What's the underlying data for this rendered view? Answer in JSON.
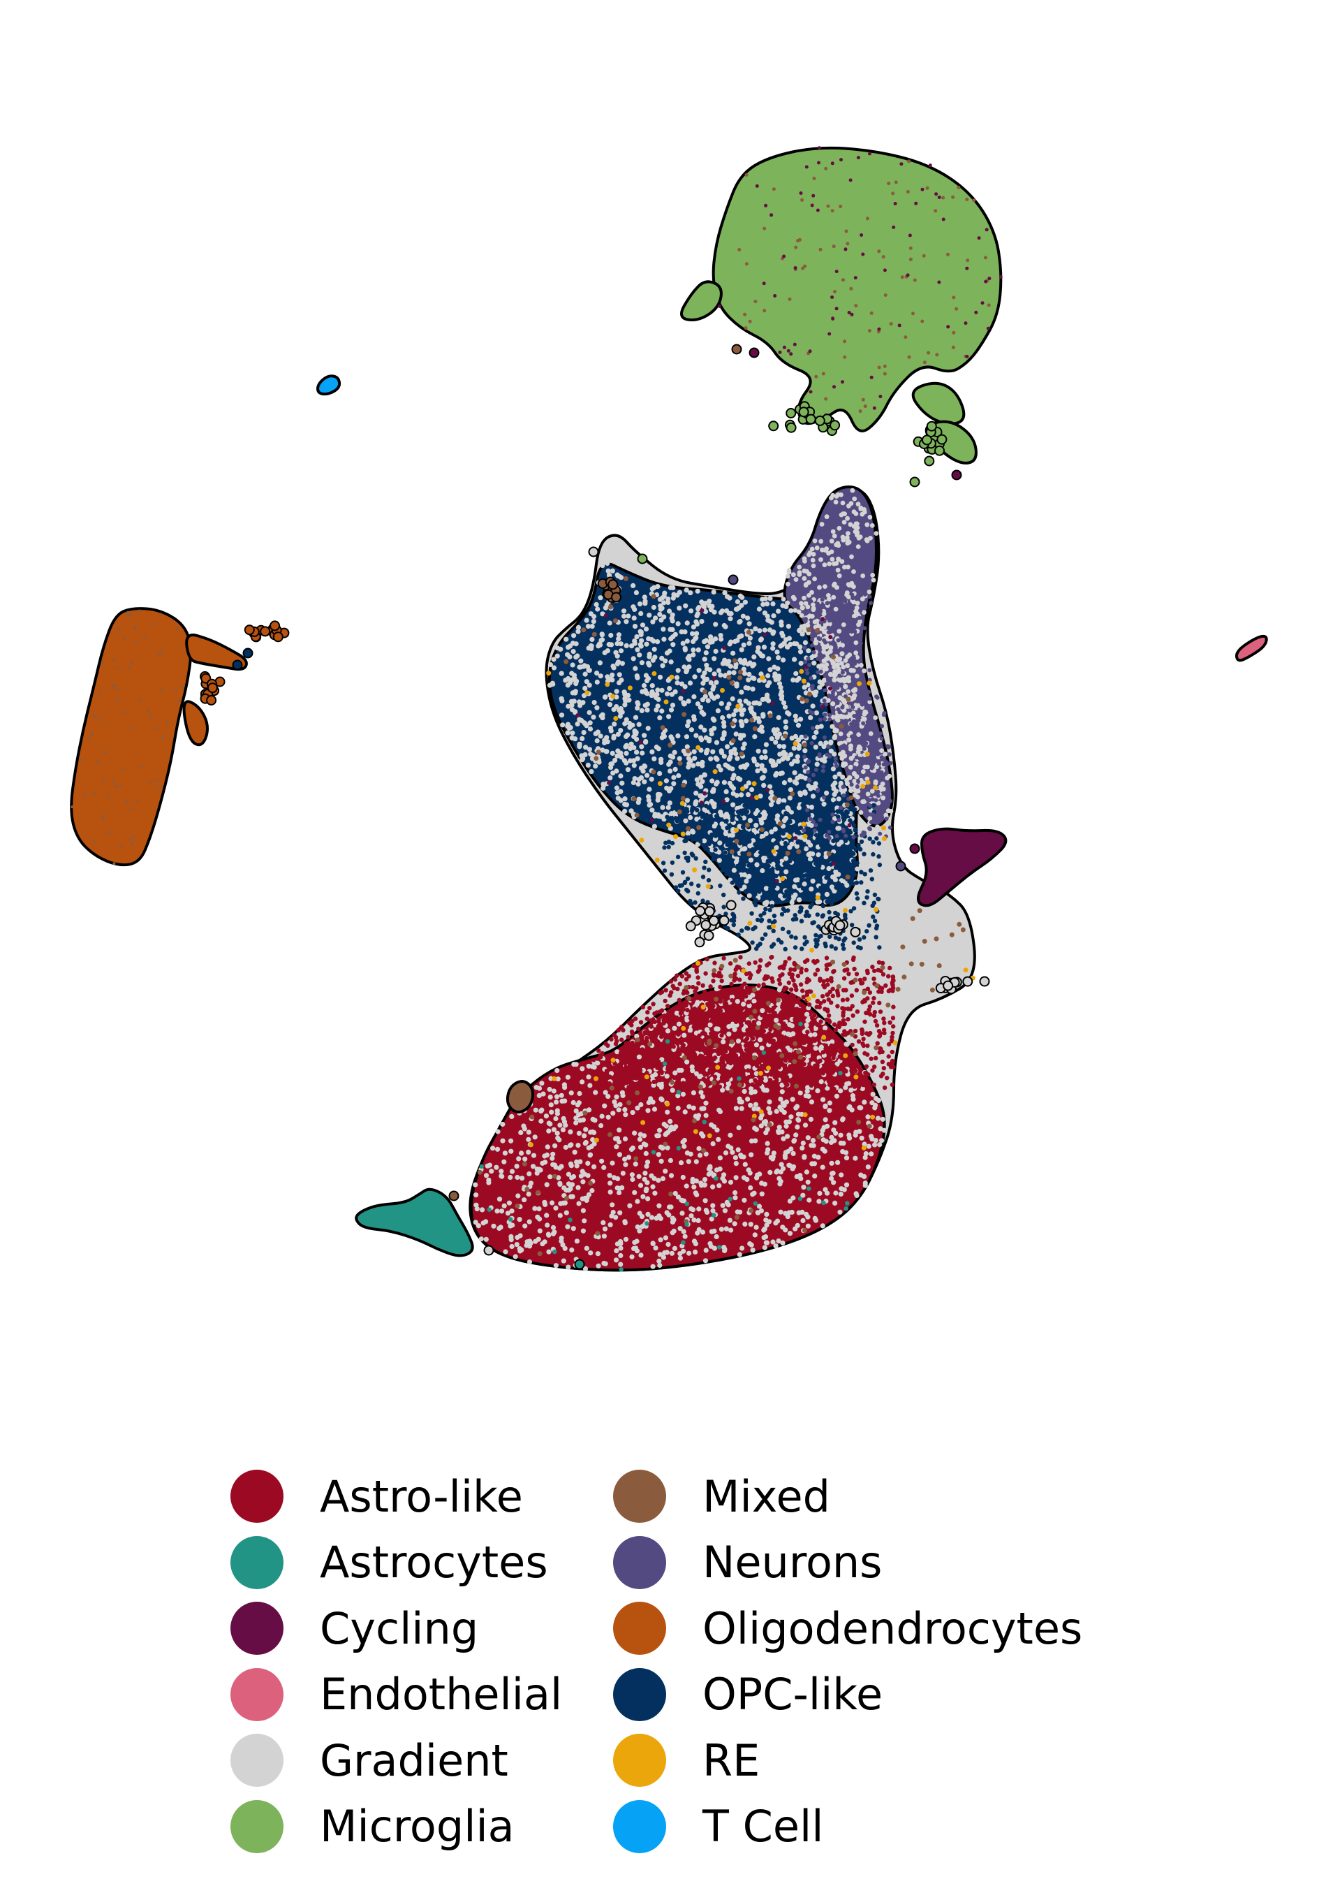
{
  "chart_data": {
    "type": "scatter",
    "title": "",
    "xlabel": "",
    "ylabel": "",
    "axes_visible": false,
    "grid": false,
    "legend_placement": "bottom",
    "legend_columns": 2,
    "categories": [
      {
        "name": "Astro-like",
        "color": "#9b0a22"
      },
      {
        "name": "Astrocytes",
        "color": "#229486"
      },
      {
        "name": "Cycling",
        "color": "#650d44"
      },
      {
        "name": "Endothelial",
        "color": "#dc617c"
      },
      {
        "name": "Gradient",
        "color": "#d3d3d3"
      },
      {
        "name": "Microglia",
        "color": "#7db35a"
      },
      {
        "name": "Mixed",
        "color": "#8b5b3e"
      },
      {
        "name": "Neurons",
        "color": "#524a80"
      },
      {
        "name": "Oligodendrocytes",
        "color": "#b8530f"
      },
      {
        "name": "OPC-like",
        "color": "#04305f"
      },
      {
        "name": "RE",
        "color": "#eaa60a"
      },
      {
        "name": "T Cell",
        "color": "#06a2f6"
      }
    ]
  }
}
